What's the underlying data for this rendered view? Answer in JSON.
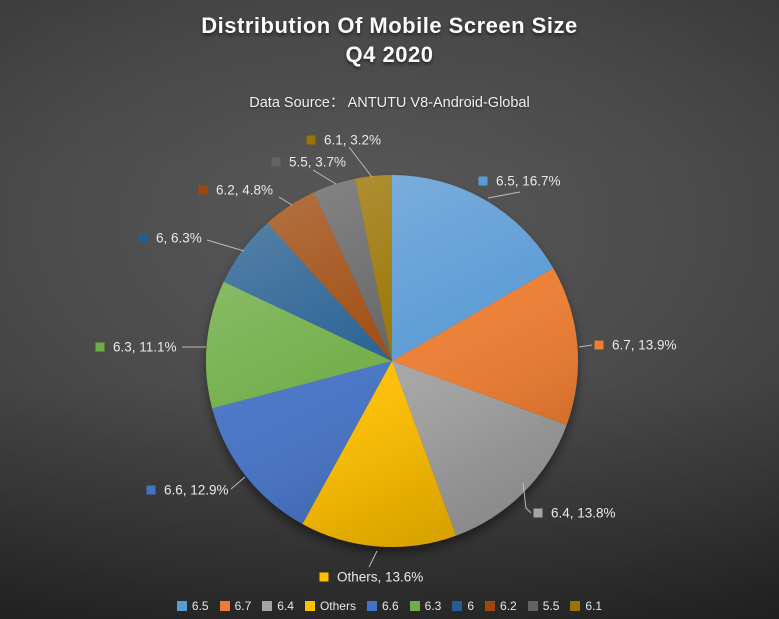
{
  "header": {
    "title_line1": "Distribution Of Mobile Screen Size",
    "title_line2": "Q4 2020",
    "subtitle": "Data Source：  ANTUTU V8-Android-Global"
  },
  "chart_data": {
    "type": "pie",
    "title": "Distribution Of Mobile Screen Size Q4 2020",
    "subtitle": "Data Source: ANTUTU V8-Android-Global",
    "categories": [
      "6.5",
      "6.7",
      "6.4",
      "Others",
      "6.6",
      "6.3",
      "6",
      "6.2",
      "5.5",
      "6.1"
    ],
    "values": [
      16.7,
      13.9,
      13.8,
      13.6,
      12.9,
      11.1,
      6.3,
      4.8,
      3.7,
      3.2
    ],
    "unit": "%",
    "colors": [
      "#5B9BD5",
      "#ED7D31",
      "#A5A5A5",
      "#FFC000",
      "#4472C4",
      "#70AD47",
      "#255E91",
      "#9E480E",
      "#636363",
      "#997300"
    ],
    "start_angle_deg": 0,
    "direction": "clockwise",
    "legend_position": "bottom",
    "label_format": "{category}, {value}%",
    "background_color": "#4a4a4a",
    "label_text_color": "#e9e9e9"
  }
}
